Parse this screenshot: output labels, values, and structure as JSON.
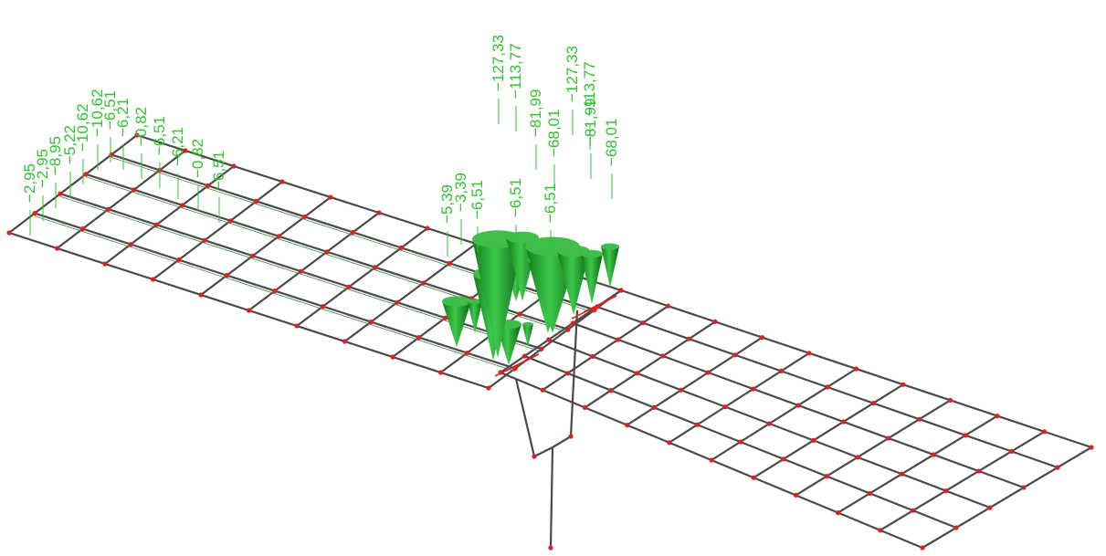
{
  "labels": [
    "−2,95",
    "−2,95",
    "−8,95",
    "−5,22",
    "−10,62",
    "−10,62",
    "−6,51",
    "−6,21",
    "−0,82",
    "−6,51",
    "−6,21",
    "−0,82",
    "−6,51",
    "−5,39",
    "−3,39",
    "−6,51",
    "−127,33",
    "−113,77",
    "−81,99",
    "−68,01",
    "−127,33",
    "−113,77",
    "−81,99",
    "−68,01",
    "−6,51",
    "−6,51"
  ]
}
